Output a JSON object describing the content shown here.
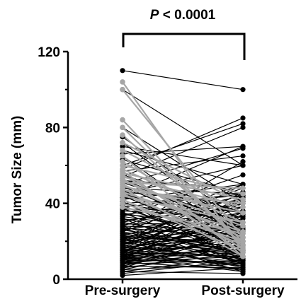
{
  "chart_data": {
    "type": "line",
    "title": "",
    "xlabel": "",
    "ylabel": "Tumor Size (mm)",
    "categories": [
      "Pre-surgery",
      "Post-surgery"
    ],
    "ylim": [
      0,
      120
    ],
    "yticks": [
      "0",
      "40",
      "80",
      "120"
    ],
    "annotation": {
      "prefix": "P",
      "text": " < 0.0001"
    },
    "colors": {
      "black": "#000000",
      "gray": "#a6a6a6"
    },
    "pairs_gray": [
      [
        104,
        15
      ],
      [
        100,
        22
      ],
      [
        84,
        17
      ],
      [
        80,
        18
      ],
      [
        76,
        20
      ],
      [
        72,
        40
      ],
      [
        68,
        35
      ],
      [
        65,
        12
      ],
      [
        62,
        25
      ],
      [
        60,
        45
      ],
      [
        58,
        30
      ],
      [
        57,
        14
      ],
      [
        56,
        42
      ],
      [
        55,
        20
      ],
      [
        54,
        38
      ],
      [
        53,
        16
      ],
      [
        52,
        28
      ],
      [
        51,
        48
      ],
      [
        50,
        22
      ],
      [
        49,
        35
      ],
      [
        48,
        12
      ],
      [
        47,
        40
      ],
      [
        46,
        25
      ],
      [
        45,
        18
      ],
      [
        44,
        30
      ],
      [
        42,
        15
      ],
      [
        40,
        20
      ],
      [
        38,
        24
      ]
    ],
    "pairs_black": [
      [
        110,
        100
      ],
      [
        100,
        60
      ],
      [
        80,
        40
      ],
      [
        75,
        30
      ],
      [
        72,
        25
      ],
      [
        70,
        60
      ],
      [
        68,
        50
      ],
      [
        66,
        70
      ],
      [
        65,
        20
      ],
      [
        63,
        45
      ],
      [
        60,
        82
      ],
      [
        58,
        85
      ],
      [
        57,
        65
      ],
      [
        55,
        35
      ],
      [
        54,
        80
      ],
      [
        53,
        25
      ],
      [
        52,
        48
      ],
      [
        51,
        30
      ],
      [
        50,
        69
      ],
      [
        49,
        22
      ],
      [
        48,
        45
      ],
      [
        47,
        15
      ],
      [
        46,
        40
      ],
      [
        45,
        60
      ],
      [
        44,
        18
      ],
      [
        43,
        35
      ],
      [
        42,
        50
      ],
      [
        41,
        10
      ],
      [
        40,
        28
      ],
      [
        38,
        45
      ],
      [
        37,
        20
      ],
      [
        36,
        33
      ],
      [
        35,
        12
      ],
      [
        34,
        42
      ],
      [
        33,
        25
      ],
      [
        32,
        8
      ],
      [
        31,
        38
      ],
      [
        30,
        18
      ],
      [
        29,
        30
      ],
      [
        28,
        10
      ],
      [
        28,
        50
      ],
      [
        27,
        22
      ],
      [
        26,
        35
      ],
      [
        25,
        14
      ],
      [
        25,
        48
      ],
      [
        24,
        28
      ],
      [
        23,
        9
      ],
      [
        23,
        40
      ],
      [
        22,
        20
      ],
      [
        22,
        33
      ],
      [
        21,
        12
      ],
      [
        21,
        45
      ],
      [
        20,
        25
      ],
      [
        20,
        6
      ],
      [
        19,
        30
      ],
      [
        19,
        15
      ],
      [
        18,
        38
      ],
      [
        18,
        10
      ],
      [
        17,
        22
      ],
      [
        17,
        42
      ],
      [
        16,
        8
      ],
      [
        16,
        28
      ],
      [
        15,
        18
      ],
      [
        15,
        35
      ],
      [
        15,
        5
      ],
      [
        14,
        24
      ],
      [
        14,
        12
      ],
      [
        14,
        46
      ],
      [
        13,
        20
      ],
      [
        13,
        7
      ],
      [
        13,
        32
      ],
      [
        12,
        16
      ],
      [
        12,
        26
      ],
      [
        12,
        4
      ],
      [
        11,
        14
      ],
      [
        11,
        22
      ],
      [
        11,
        36
      ],
      [
        10,
        9
      ],
      [
        10,
        18
      ],
      [
        10,
        28
      ],
      [
        9,
        12
      ],
      [
        9,
        24
      ],
      [
        9,
        5
      ],
      [
        8,
        15
      ],
      [
        8,
        30
      ],
      [
        8,
        10
      ],
      [
        7,
        20
      ],
      [
        7,
        6
      ],
      [
        6,
        14
      ],
      [
        6,
        25
      ],
      [
        5,
        8
      ],
      [
        5,
        18
      ],
      [
        4,
        12
      ],
      [
        4,
        3
      ],
      [
        3,
        10
      ],
      [
        2,
        6
      ],
      [
        25,
        62
      ],
      [
        33,
        55
      ],
      [
        43,
        70
      ],
      [
        30,
        44
      ],
      [
        20,
        41
      ],
      [
        18,
        50
      ],
      [
        16,
        43
      ],
      [
        24,
        15
      ],
      [
        35,
        22
      ],
      [
        45,
        28
      ],
      [
        39,
        12
      ],
      [
        27,
        8
      ],
      [
        22,
        4
      ],
      [
        40,
        44
      ],
      [
        37,
        36
      ],
      [
        32,
        20
      ],
      [
        26,
        16
      ],
      [
        14,
        40
      ],
      [
        12,
        34
      ],
      [
        10,
        44
      ],
      [
        28,
        26
      ],
      [
        34,
        30
      ],
      [
        19,
        22
      ],
      [
        17,
        11
      ],
      [
        13,
        15
      ],
      [
        11,
        8
      ],
      [
        9,
        18
      ],
      [
        15,
        25
      ],
      [
        21,
        27
      ],
      [
        23,
        17
      ]
    ]
  }
}
